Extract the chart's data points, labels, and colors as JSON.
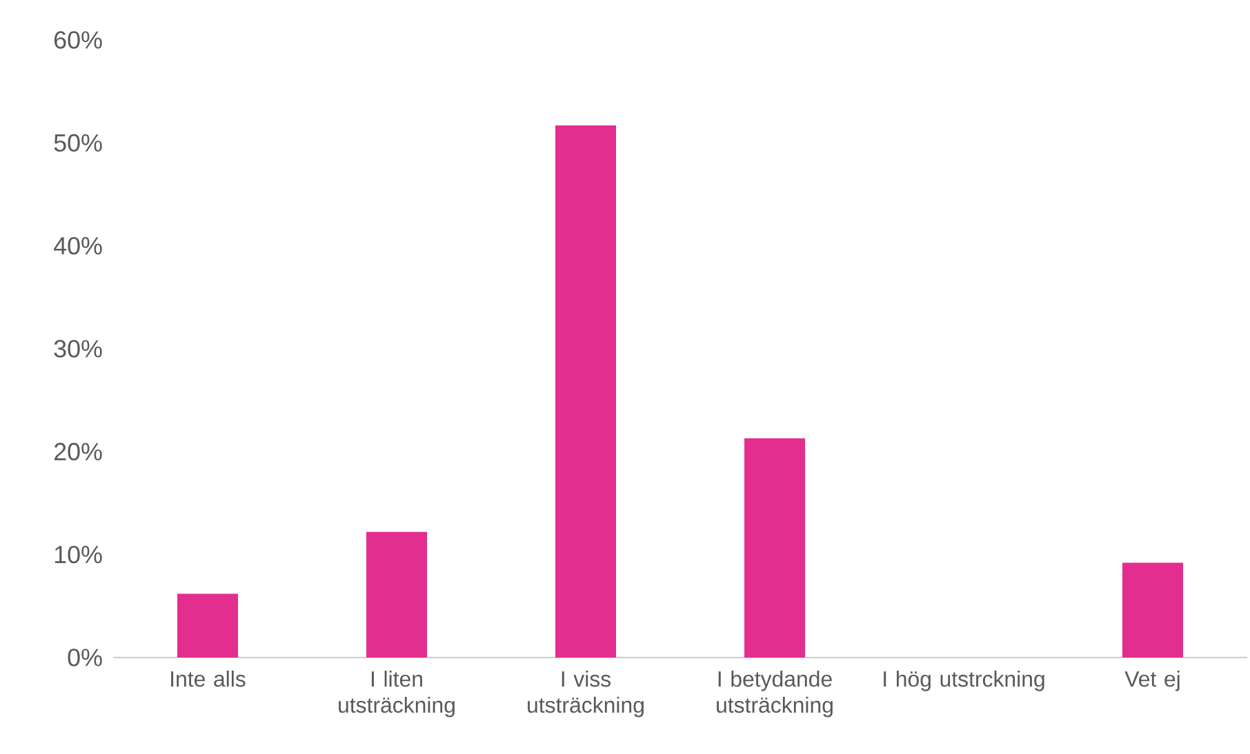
{
  "chart_data": {
    "type": "bar",
    "categories": [
      "Inte alls",
      "I liten utsträckning",
      "I viss utsträckning",
      "I betydande utsträckning",
      "I hög utstrckning",
      "Vet ej"
    ],
    "values": [
      6.2,
      12.2,
      51.7,
      21.3,
      0,
      9.2
    ],
    "color": "#e32d8f",
    "ylim": [
      0,
      60
    ],
    "yticks": [
      {
        "value": 0,
        "label": "0%"
      },
      {
        "value": 10,
        "label": "10%"
      },
      {
        "value": 20,
        "label": "20%"
      },
      {
        "value": 30,
        "label": "30%"
      },
      {
        "value": 40,
        "label": "40%"
      },
      {
        "value": 50,
        "label": "50%"
      },
      {
        "value": 60,
        "label": "60%"
      }
    ],
    "grid": false
  }
}
